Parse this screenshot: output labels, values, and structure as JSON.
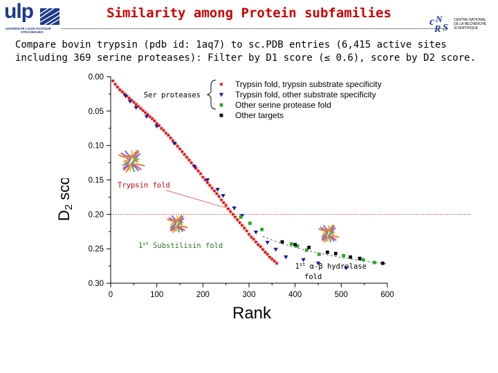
{
  "header": {
    "logo_left_text": "ulp",
    "logo_left_sub": [
      "UNIVERSITÉ LOUIS PASTEUR",
      "STRASBOURG"
    ],
    "title": "Similarity among Protein subfamilies",
    "logo_right_text": "CNRS",
    "logo_right_sub": [
      "CENTRE NATIONAL",
      "DE LA RECHERCHE",
      "SCIENTIFIQUE"
    ]
  },
  "subtitle": "Compare bovin trypsin (pdb id: 1aq7) to sc.PDB entries (6,415 active sites including 369 serine proteases): Filter by D1 score (≤ 0.6), score by D2 score.",
  "chart_data": {
    "type": "scatter",
    "xlabel": "Rank",
    "ylabel": "D2 score",
    "xlim": [
      0,
      600
    ],
    "ylim": [
      0.0,
      0.3
    ],
    "y_inverted": true,
    "x_ticks": [
      "0",
      "100",
      "200",
      "300",
      "400",
      "500",
      "600"
    ],
    "y_ticks": [
      "0.00",
      "0.05",
      "0.10",
      "0.15",
      "0.20",
      "0.25",
      "0.30"
    ],
    "threshold_line_y": 0.2,
    "legend": {
      "placement": "top-right",
      "bracket_label": "Ser proteases",
      "entries": [
        {
          "label": "Trypsin fold,  trypsin substrate specificity",
          "color": "#dd0000",
          "marker": "star"
        },
        {
          "label": "Trypsin fold, other substrate specificity",
          "color": "#1a1aa0",
          "marker": "triangle-down"
        },
        {
          "label": "Other serine protease fold",
          "color": "#22aa22",
          "marker": "square"
        },
        {
          "label": " Other targets",
          "color": "#000000",
          "marker": "square"
        }
      ]
    },
    "series": [
      {
        "name": "Trypsin fold,  trypsin substrate specificity",
        "color": "#dd0000",
        "x": [
          5,
          10,
          15,
          20,
          25,
          30,
          35,
          40,
          45,
          50,
          55,
          60,
          65,
          70,
          75,
          80,
          85,
          90,
          95,
          100,
          105,
          110,
          115,
          120,
          125,
          130,
          135,
          140,
          145,
          150,
          155,
          160,
          165,
          170,
          175,
          180,
          185,
          190,
          195,
          200,
          205,
          210,
          215,
          220,
          225,
          230,
          235,
          240,
          245,
          250,
          255,
          260,
          265,
          270,
          275,
          280,
          285,
          290,
          295,
          300,
          305,
          310,
          315,
          320,
          325,
          330,
          335,
          340,
          345,
          350,
          355,
          360
        ],
        "y": [
          0.006,
          0.011,
          0.015,
          0.019,
          0.022,
          0.025,
          0.028,
          0.031,
          0.034,
          0.037,
          0.04,
          0.043,
          0.046,
          0.049,
          0.052,
          0.055,
          0.058,
          0.061,
          0.064,
          0.068,
          0.071,
          0.075,
          0.078,
          0.082,
          0.085,
          0.089,
          0.093,
          0.097,
          0.101,
          0.105,
          0.109,
          0.113,
          0.117,
          0.121,
          0.125,
          0.129,
          0.133,
          0.137,
          0.141,
          0.146,
          0.15,
          0.154,
          0.158,
          0.162,
          0.166,
          0.17,
          0.174,
          0.179,
          0.183,
          0.187,
          0.192,
          0.196,
          0.2,
          0.204,
          0.208,
          0.212,
          0.216,
          0.22,
          0.224,
          0.229,
          0.233,
          0.236,
          0.24,
          0.244,
          0.247,
          0.251,
          0.255,
          0.258,
          0.262,
          0.265,
          0.268,
          0.271
        ]
      },
      {
        "name": "Trypsin fold, other substrate specificity",
        "color": "#1a1aa0",
        "x": [
          32,
          42,
          55,
          78,
          100,
          138,
          182,
          210,
          232,
          244,
          268,
          285,
          315,
          340,
          358,
          380,
          418,
          450,
          510
        ],
        "y": [
          0.028,
          0.036,
          0.045,
          0.058,
          0.072,
          0.097,
          0.131,
          0.15,
          0.164,
          0.173,
          0.191,
          0.202,
          0.226,
          0.241,
          0.251,
          0.262,
          0.266,
          0.271,
          0.278
        ]
      },
      {
        "name": "Other serine protease fold",
        "color": "#22aa22",
        "x": [
          282,
          302,
          328,
          392,
          405,
          425,
          452,
          505,
          548,
          572
        ],
        "y": [
          0.204,
          0.213,
          0.222,
          0.243,
          0.246,
          0.252,
          0.258,
          0.26,
          0.266,
          0.27
        ]
      },
      {
        "name": " Other targets",
        "color": "#000000",
        "x": [
          372,
          400,
          430,
          470,
          488,
          520,
          540,
          590
        ],
        "y": [
          0.24,
          0.244,
          0.248,
          0.255,
          0.257,
          0.262,
          0.264,
          0.271
        ]
      }
    ],
    "annotations": [
      {
        "text": "Trypsin fold",
        "x": 15,
        "y": 0.157,
        "color": "#cc0000"
      },
      {
        "text": "1st Substilisin fold",
        "x": 60,
        "y": 0.245,
        "color": "#2a7a2a"
      },
      {
        "text": "1st α-β hydrolase",
        "x": 400,
        "y": 0.275,
        "color": "#000000"
      },
      {
        "text": "fold",
        "x": 420,
        "y": 0.29,
        "color": "#000000"
      }
    ]
  }
}
